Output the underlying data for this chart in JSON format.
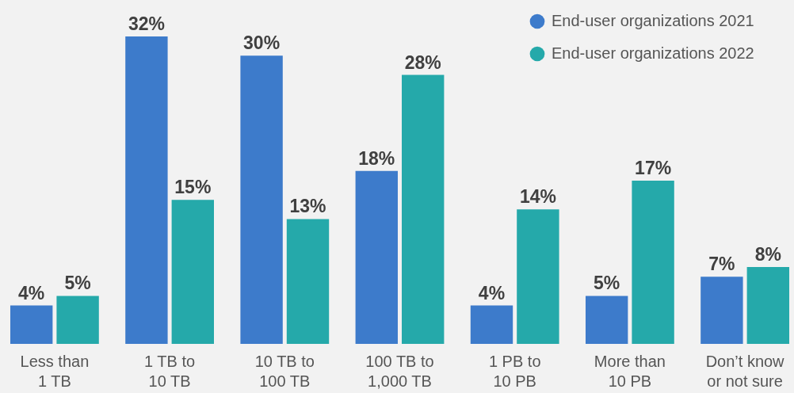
{
  "chart_data": {
    "type": "bar",
    "categories": [
      "Less than\n1 TB",
      "1 TB to\n10 TB",
      "10 TB to\n100 TB",
      "100 TB to\n1,000 TB",
      "1 PB to\n10 PB",
      "More than\n10 PB",
      "Don’t know\nor not sure"
    ],
    "series": [
      {
        "name": "End-user organizations 2021",
        "color": "#3d7bcb",
        "values": [
          4,
          32,
          30,
          18,
          4,
          5,
          7
        ],
        "value_labels": [
          "4%",
          "32%",
          "30%",
          "18%",
          "4%",
          "5%",
          "7%"
        ]
      },
      {
        "name": "End-user organizations 2022",
        "color": "#25a9aa",
        "values": [
          5,
          15,
          13,
          28,
          14,
          17,
          8
        ],
        "value_labels": [
          "5%",
          "15%",
          "13%",
          "28%",
          "14%",
          "17%",
          "8%"
        ]
      }
    ],
    "legend": "top right"
  }
}
